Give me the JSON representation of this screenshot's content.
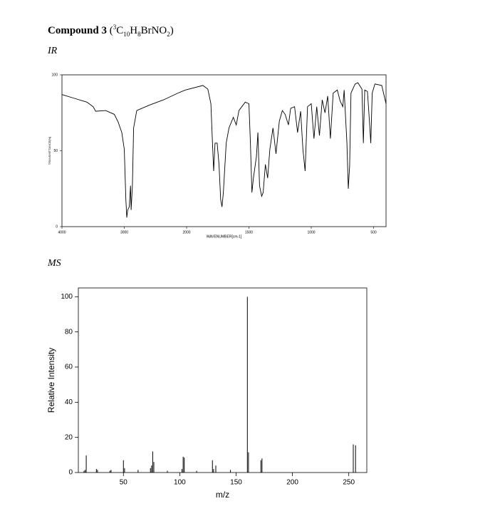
{
  "heading": {
    "bold": "Compound 3",
    "formula": [
      "(",
      "3",
      "C",
      "10",
      "H",
      "8",
      "Br",
      "NO",
      "2",
      ")"
    ]
  },
  "sections": [
    "IR",
    "MS"
  ],
  "chart_data": [
    {
      "type": "line",
      "xlabel": "WAVENUMBER[cm-1]",
      "ylabel": "TRANSMITTANCE[%]",
      "color": "#000000",
      "x": [
        4000,
        3800,
        3600,
        3500,
        3460,
        3300,
        3160,
        3100,
        3040,
        3000,
        2975,
        2960,
        2945,
        2920,
        2900,
        2890,
        2870,
        2850,
        2800,
        2600,
        2370,
        2140,
        2020,
        1870,
        1830,
        1805,
        1795,
        1783,
        1772,
        1755,
        1740,
        1727,
        1716,
        1705,
        1682,
        1660,
        1625,
        1602,
        1580,
        1530,
        1500,
        1488,
        1476,
        1464,
        1440,
        1428,
        1415,
        1398,
        1386,
        1368,
        1350,
        1332,
        1307,
        1283,
        1256,
        1232,
        1210,
        1183,
        1165,
        1134,
        1110,
        1085,
        1067,
        1049,
        1030,
        1000,
        978,
        956,
        934,
        912,
        890,
        868,
        846,
        824,
        791,
        769,
        747,
        736,
        714,
        703,
        692,
        681,
        648,
        626,
        593,
        582,
        571,
        549,
        533,
        522,
        511,
        489,
        434,
        400
      ],
      "values": [
        87,
        84.5,
        82,
        79,
        76,
        76.5,
        74,
        69,
        62,
        51,
        18,
        6,
        11,
        13,
        27,
        11,
        27,
        65,
        76.5,
        80,
        83.5,
        88,
        90,
        93,
        90.6,
        81,
        60,
        36.6,
        55,
        55,
        41,
        18,
        13,
        22.5,
        55,
        65,
        72,
        67,
        76.5,
        82,
        81,
        55,
        22.5,
        32,
        46,
        62,
        27,
        20,
        22.5,
        41,
        32,
        51,
        65,
        48,
        69.5,
        76.5,
        74,
        67,
        78,
        79,
        62,
        76,
        51,
        36.6,
        79,
        81,
        58,
        79,
        60,
        83.5,
        75,
        86,
        58,
        88,
        90,
        83,
        79,
        90,
        55,
        25,
        40,
        88,
        94,
        94.8,
        90.6,
        55,
        90,
        89,
        69.5,
        55,
        88,
        94,
        93,
        81
      ],
      "xlim": [
        4000,
        400
      ],
      "xticks": [
        4000,
        3000,
        2000,
        1500,
        1000,
        500
      ],
      "ylim": [
        0,
        100
      ],
      "yticks": [
        0,
        50,
        100
      ]
    },
    {
      "type": "bar",
      "xlabel": "m/z",
      "ylabel": "Relative Intensity",
      "color": "#000000",
      "x": [
        15,
        16,
        17,
        26,
        27,
        38,
        39,
        50,
        51,
        63,
        74,
        75,
        76,
        77,
        89,
        102,
        103,
        104,
        115,
        129,
        130,
        132,
        145,
        160,
        161,
        172,
        173,
        254,
        256
      ],
      "values": [
        1,
        1.5,
        9.7,
        2,
        1.5,
        1,
        1.5,
        7,
        2.5,
        1.5,
        2.5,
        4,
        12,
        6,
        1,
        2,
        9,
        8.5,
        1,
        7,
        2,
        4,
        1.5,
        100,
        11.5,
        7,
        8,
        16,
        15.5
      ],
      "xlim": [
        10,
        266
      ],
      "xticks": [
        50,
        100,
        150,
        200,
        250
      ],
      "ylim": [
        0,
        105
      ],
      "yticks": [
        0,
        20,
        40,
        60,
        80,
        100
      ]
    }
  ]
}
